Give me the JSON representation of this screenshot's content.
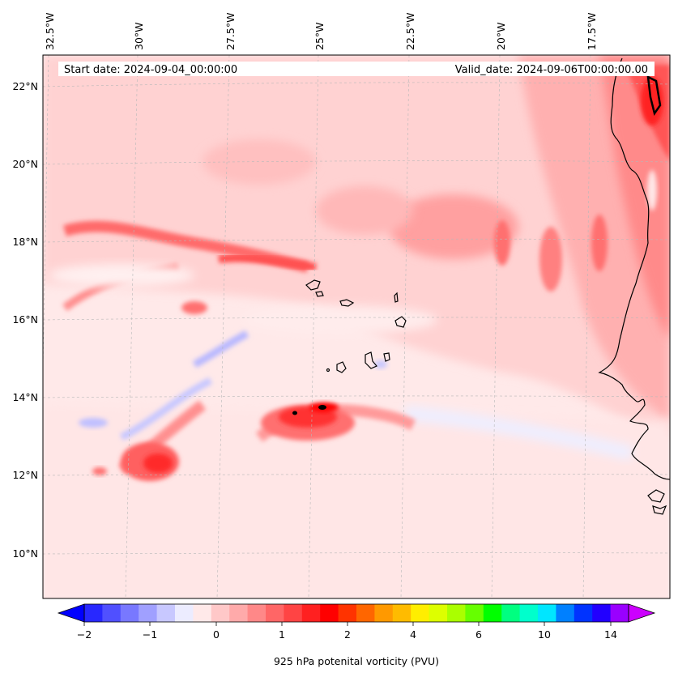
{
  "header": {
    "start_date": "Start date: 2024-09-04_00:00:00",
    "valid_date": "Valid_date: 2024-09-06T00:00:00.00"
  },
  "map": {
    "lon_labels": [
      "32.5°W",
      "30°W",
      "27.5°W",
      "25°W",
      "22.5°W",
      "20°W",
      "17.5°W"
    ],
    "lat_labels": [
      "22°N",
      "20°N",
      "18°N",
      "16°N",
      "14°N",
      "12°N",
      "10°N"
    ],
    "colors": {
      "background": "#ffe9e9",
      "coastline": "#000000",
      "gridline": "#b8b8b8"
    },
    "features": {
      "islands": "cape-verde-islands",
      "coast": "west-africa-coastline"
    }
  },
  "colorbar": {
    "label": "925 hPa potenital vorticity (PVU)",
    "tick_labels": [
      "−2",
      "−1",
      "0",
      "1",
      "2",
      "4",
      "6",
      "10",
      "14"
    ],
    "colors": [
      "#0000ff",
      "#2828ff",
      "#5050ff",
      "#7878ff",
      "#a0a0ff",
      "#c8c8ff",
      "#ececff",
      "#ffe9e9",
      "#ffc8c8",
      "#ffaaaa",
      "#ff8888",
      "#ff6666",
      "#ff4444",
      "#ff2020",
      "#ff0000",
      "#ff3300",
      "#ff6600",
      "#ff9900",
      "#ffbb00",
      "#ffee00",
      "#ddff00",
      "#aaff00",
      "#66ff00",
      "#00ff00",
      "#00ff80",
      "#00ffcc",
      "#00e6ff",
      "#0080ff",
      "#0033ff",
      "#2200ff",
      "#9900ff",
      "#cc00ff"
    ]
  }
}
